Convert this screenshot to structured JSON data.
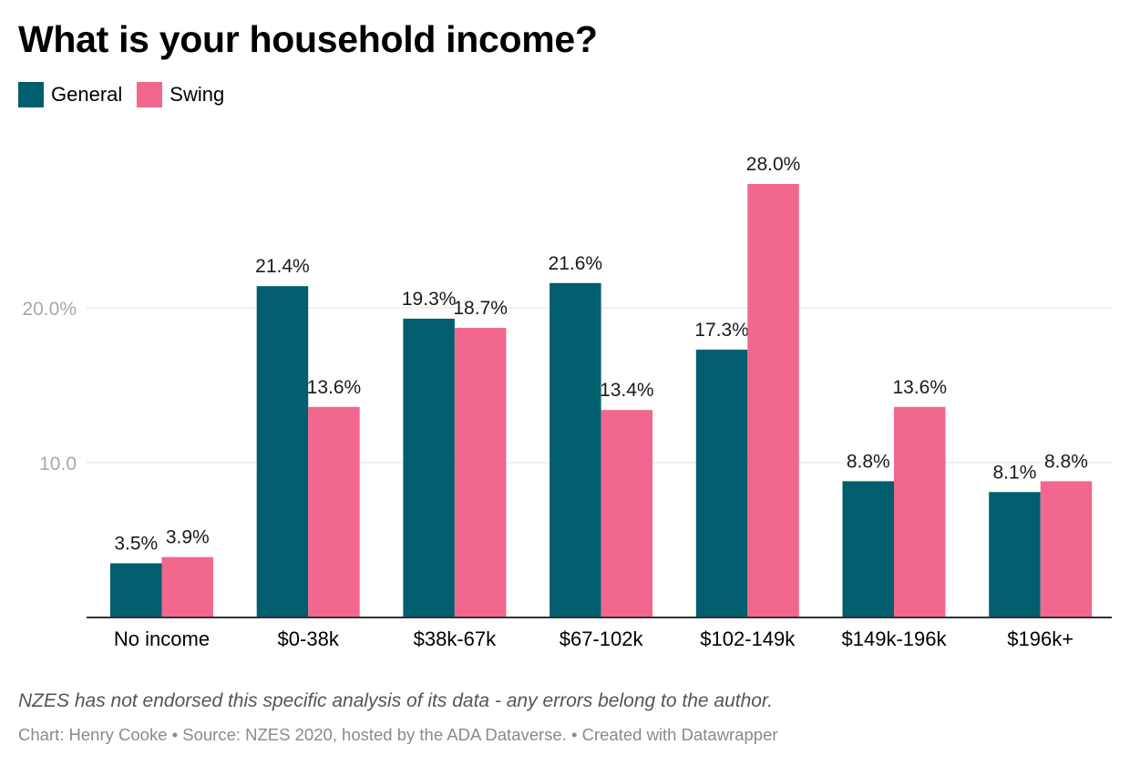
{
  "chart_data": {
    "type": "bar",
    "title": "What is your household income?",
    "categories": [
      "No income",
      "$0-38k",
      "$38k-67k",
      "$67-102k",
      "$102-149k",
      "$149k-196k",
      "$196k+"
    ],
    "series": [
      {
        "name": "General",
        "color": "#005e6e",
        "values": [
          3.5,
          21.4,
          19.3,
          21.6,
          17.3,
          8.8,
          8.1
        ],
        "labels": [
          "3.5%",
          "21.4%",
          "19.3%",
          "21.6%",
          "17.3%",
          "8.8%",
          "8.1%"
        ]
      },
      {
        "name": "Swing",
        "color": "#f2678d",
        "values": [
          3.9,
          13.6,
          18.7,
          13.4,
          28.0,
          13.6,
          8.8
        ],
        "labels": [
          "3.9%",
          "13.6%",
          "18.7%",
          "13.4%",
          "28.0%",
          "13.6%",
          "8.8%"
        ]
      }
    ],
    "yticks": [
      10,
      20
    ],
    "ytick_labels": [
      "10.0",
      "20.0%"
    ],
    "ylim": [
      0,
      30
    ],
    "grid": true,
    "legend_position": "top-left"
  },
  "footnote": "NZES has not endorsed this specific analysis of its data - any errors belong to the author.",
  "credit": "Chart: Henry Cooke • Source: NZES 2020, hosted by the ADA Dataverse. • Created with Datawrapper"
}
